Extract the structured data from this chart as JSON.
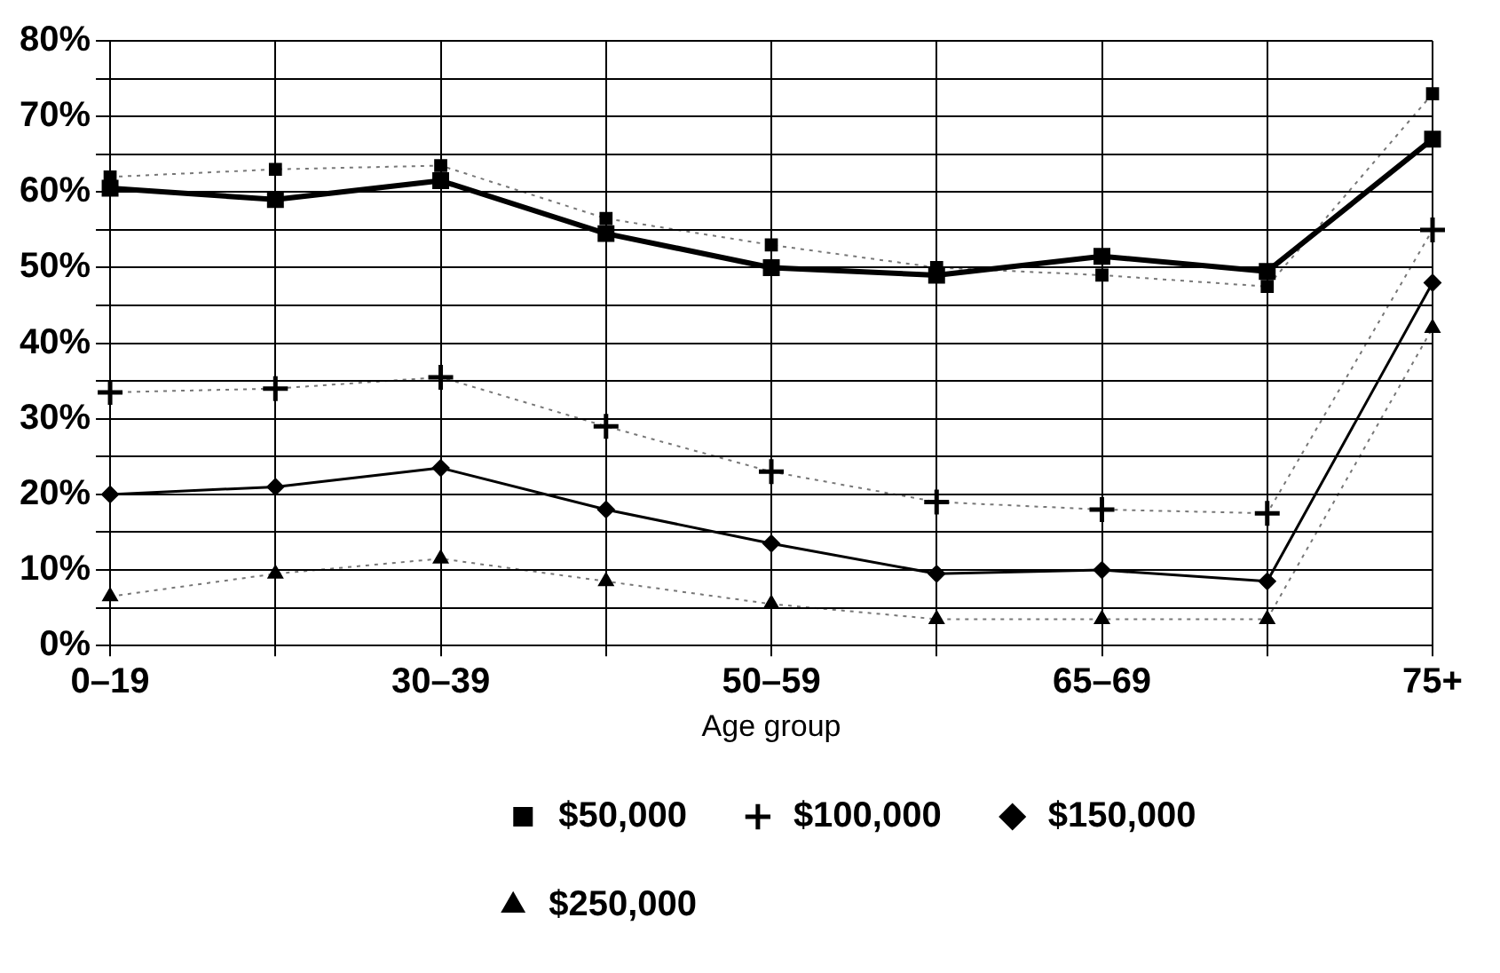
{
  "chart_data": {
    "type": "line",
    "xlabel": "Age group",
    "categories": [
      "0–19",
      null,
      "30–39",
      null,
      "50–59",
      null,
      "65–69",
      null,
      "75+"
    ],
    "series": [
      {
        "name": "$50,000",
        "color": "#000000",
        "marker": "square",
        "line_style": "dotted",
        "values": [
          62,
          63,
          63.5,
          56.5,
          53,
          50,
          49,
          47.5,
          73
        ]
      },
      {
        "name": "$100,000",
        "color": "#000000",
        "marker": "cross",
        "line_style": "dotted",
        "values": [
          33.5,
          34,
          35.5,
          29,
          23,
          19,
          18,
          17.5,
          55
        ]
      },
      {
        "name": "$150,000",
        "color": "#000000",
        "marker": "diamond",
        "line_style": "solid",
        "values": [
          20,
          21,
          23.5,
          18,
          13.5,
          9.5,
          10,
          8.5,
          48
        ]
      },
      {
        "name": "$250,000",
        "color": "#000000",
        "marker": "triangle",
        "line_style": "dotted",
        "values": [
          6.5,
          9.5,
          11.5,
          8.5,
          5.5,
          3.5,
          3.5,
          3.5,
          42
        ]
      },
      {
        "color": "#000000",
        "marker": "square",
        "line_style": "solid",
        "values": [
          60.5,
          59,
          61.5,
          54.5,
          50,
          49,
          51.5,
          49.5,
          67
        ]
      }
    ],
    "ylim": [
      0,
      80
    ],
    "yticks": [
      {
        "value": 0,
        "label": "0%"
      },
      {
        "value": 5,
        "label": null
      },
      {
        "value": 10,
        "label": "10%"
      },
      {
        "value": 15,
        "label": null
      },
      {
        "value": 20,
        "label": "20%"
      },
      {
        "value": 25,
        "label": null
      },
      {
        "value": 30,
        "label": "30%"
      },
      {
        "value": 35,
        "label": null
      },
      {
        "value": 40,
        "label": "40%"
      },
      {
        "value": 45,
        "label": null
      },
      {
        "value": 50,
        "label": "50%"
      },
      {
        "value": 55,
        "label": null
      },
      {
        "value": 60,
        "label": "60%"
      },
      {
        "value": 65,
        "label": null
      },
      {
        "value": 70,
        "label": "70%"
      },
      {
        "value": 75,
        "label": null
      },
      {
        "value": 80,
        "label": "80%"
      }
    ],
    "grid": true,
    "legend": "bottom"
  }
}
